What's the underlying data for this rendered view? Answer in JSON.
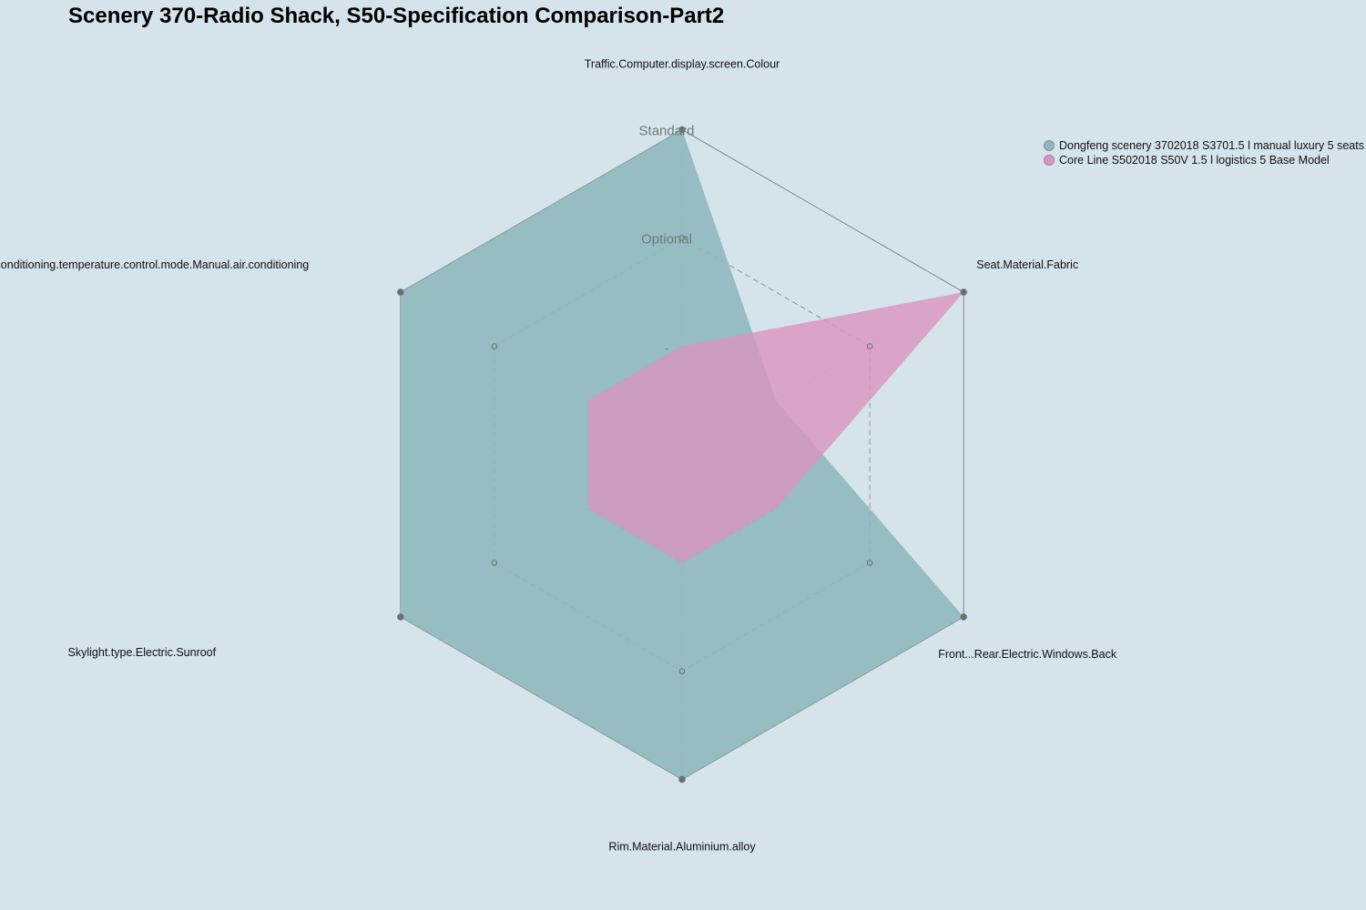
{
  "chart_data": {
    "type": "radar",
    "title": "Scenery 370-Radio Shack, S50-Specification Comparison-Part2",
    "axes": [
      "Traffic.Computer.display.screen.Colour",
      "Seat.Material.Fabric",
      "Front...Rear.Electric.Windows.Back",
      "Rim.Material.Aluminium.alloy",
      "Skylight.type.Electric.Sunroof",
      "Air.conditioning.temperature.control.mode.Manual.air.conditioning"
    ],
    "levels": [
      "-",
      "Optional",
      "Standard"
    ],
    "levels_numeric": [
      1,
      2,
      3
    ],
    "range": [
      0,
      3
    ],
    "grid": true,
    "legend_position": "top-right",
    "series": [
      {
        "name": "Dongfeng scenery 3702018 S3701.5 l manual luxury 5 seats",
        "color": "#8db7bb",
        "values": [
          3,
          1,
          3,
          3,
          3,
          3
        ]
      },
      {
        "name": "Core Line S502018 S50V 1.5 l logistics 5 Base Model",
        "color": "#d996c0",
        "values": [
          1,
          3,
          1,
          1,
          1,
          1
        ]
      }
    ]
  }
}
